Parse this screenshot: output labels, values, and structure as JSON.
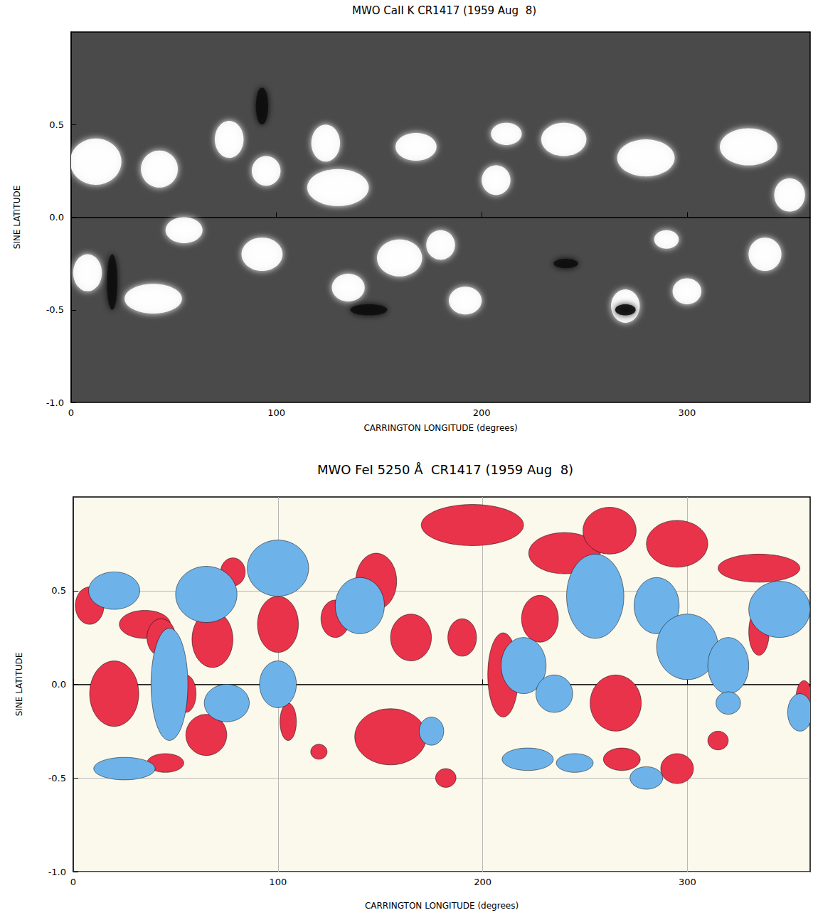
{
  "chart_data": [
    {
      "type": "blob_map",
      "title": "MWO CaII K CR1417 (1959 Aug  8)",
      "x_label": "CARRINGTON LONGITUDE (degrees)",
      "y_label": "SINE LATITUDE",
      "xlim": [
        0,
        360
      ],
      "xticks": [
        0,
        100,
        200,
        300
      ],
      "ylim": [
        -1,
        1
      ],
      "yticks": [
        {
          "value": -1,
          "label": "-1.0"
        },
        {
          "value": -0.5,
          "label": "-0.5"
        },
        {
          "value": 0,
          "label": "0.0"
        },
        {
          "value": 0.5,
          "label": "0.5"
        }
      ],
      "grid": false,
      "series": [
        {
          "color": "#ffffff",
          "values": [
            [
              12,
              0.3,
              25,
              0.25
            ],
            [
              43,
              0.26,
              18,
              0.2
            ],
            [
              77,
              0.42,
              14,
              0.2
            ],
            [
              95,
              0.25,
              14,
              0.16
            ],
            [
              124,
              0.4,
              14,
              0.2
            ],
            [
              130,
              0.16,
              30,
              0.2
            ],
            [
              168,
              0.38,
              20,
              0.15
            ],
            [
              207,
              0.2,
              14,
              0.16
            ],
            [
              212,
              0.45,
              15,
              0.12
            ],
            [
              240,
              0.42,
              22,
              0.18
            ],
            [
              280,
              0.32,
              28,
              0.2
            ],
            [
              330,
              0.38,
              28,
              0.2
            ],
            [
              350,
              0.12,
              15,
              0.18
            ],
            [
              55,
              -0.07,
              18,
              0.14
            ],
            [
              93,
              -0.2,
              20,
              0.18
            ],
            [
              8,
              -0.3,
              14,
              0.2
            ],
            [
              40,
              -0.44,
              28,
              0.16
            ],
            [
              160,
              -0.22,
              22,
              0.2
            ],
            [
              135,
              -0.38,
              16,
              0.15
            ],
            [
              192,
              -0.45,
              16,
              0.15
            ],
            [
              180,
              -0.15,
              14,
              0.16
            ],
            [
              290,
              -0.12,
              12,
              0.1
            ],
            [
              270,
              -0.48,
              14,
              0.18
            ],
            [
              300,
              -0.4,
              14,
              0.14
            ],
            [
              338,
              -0.2,
              16,
              0.18
            ]
          ]
        },
        {
          "color": "#111111",
          "values": [
            [
              93,
              0.6,
              6,
              0.2
            ],
            [
              20,
              -0.35,
              5,
              0.3
            ],
            [
              145,
              -0.5,
              18,
              0.06
            ],
            [
              270,
              -0.5,
              10,
              0.06
            ],
            [
              241,
              -0.25,
              12,
              0.05
            ]
          ]
        }
      ]
    },
    {
      "type": "blob_map",
      "title": "MWO FeI 5250 Å  CR1417 (1959 Aug  8)",
      "x_label": "CARRINGTON LONGITUDE (degrees)",
      "y_label": "SINE LATITUDE",
      "xlim": [
        0,
        360
      ],
      "xticks": [
        0,
        100,
        200,
        300
      ],
      "ylim": [
        -1,
        1
      ],
      "yticks": [
        {
          "value": -1,
          "label": "-1.0"
        },
        {
          "value": -0.5,
          "label": "-0.5"
        },
        {
          "value": 0,
          "label": "0.0"
        },
        {
          "value": 0.5,
          "label": "0.5"
        }
      ],
      "grid": true,
      "series": [
        {
          "color": "#e8334a",
          "values": [
            [
              8,
              0.42,
              14,
              0.2
            ],
            [
              20,
              -0.05,
              24,
              0.35
            ],
            [
              35,
              0.32,
              25,
              0.15
            ],
            [
              43,
              0.25,
              14,
              0.2
            ],
            [
              68,
              0.24,
              20,
              0.3
            ],
            [
              55,
              -0.05,
              10,
              0.2
            ],
            [
              65,
              -0.27,
              20,
              0.22
            ],
            [
              45,
              -0.42,
              18,
              0.1
            ],
            [
              78,
              0.6,
              12,
              0.15
            ],
            [
              100,
              0.32,
              20,
              0.3
            ],
            [
              105,
              -0.2,
              8,
              0.2
            ],
            [
              128,
              0.35,
              14,
              0.2
            ],
            [
              148,
              0.55,
              20,
              0.3
            ],
            [
              155,
              -0.28,
              35,
              0.3
            ],
            [
              165,
              0.25,
              20,
              0.25
            ],
            [
              195,
              0.85,
              50,
              0.22
            ],
            [
              240,
              0.7,
              35,
              0.22
            ],
            [
              210,
              0.05,
              15,
              0.45
            ],
            [
              190,
              0.25,
              14,
              0.2
            ],
            [
              262,
              0.82,
              26,
              0.25
            ],
            [
              295,
              0.75,
              30,
              0.25
            ],
            [
              335,
              0.62,
              40,
              0.15
            ],
            [
              228,
              0.35,
              18,
              0.25
            ],
            [
              265,
              -0.1,
              25,
              0.3
            ],
            [
              268,
              -0.4,
              18,
              0.12
            ],
            [
              295,
              -0.45,
              16,
              0.16
            ],
            [
              315,
              -0.3,
              10,
              0.1
            ],
            [
              335,
              0.28,
              10,
              0.25
            ],
            [
              357,
              -0.08,
              8,
              0.2
            ],
            [
              182,
              -0.5,
              10,
              0.1
            ],
            [
              120,
              -0.36,
              8,
              0.08
            ]
          ]
        },
        {
          "color": "#6db3ea",
          "values": [
            [
              20,
              0.5,
              25,
              0.2
            ],
            [
              47,
              0,
              18,
              0.6
            ],
            [
              25,
              -0.45,
              30,
              0.12
            ],
            [
              65,
              0.48,
              30,
              0.3
            ],
            [
              75,
              -0.1,
              22,
              0.2
            ],
            [
              100,
              0.62,
              30,
              0.3
            ],
            [
              100,
              0,
              18,
              0.25
            ],
            [
              140,
              0.42,
              24,
              0.3
            ],
            [
              175,
              -0.25,
              12,
              0.15
            ],
            [
              220,
              0.1,
              22,
              0.3
            ],
            [
              235,
              -0.05,
              18,
              0.2
            ],
            [
              222,
              -0.4,
              25,
              0.12
            ],
            [
              255,
              0.47,
              28,
              0.45
            ],
            [
              285,
              0.42,
              22,
              0.3
            ],
            [
              300,
              0.2,
              30,
              0.35
            ],
            [
              320,
              0.1,
              20,
              0.3
            ],
            [
              345,
              0.4,
              30,
              0.3
            ],
            [
              355,
              -0.15,
              12,
              0.2
            ],
            [
              280,
              -0.5,
              16,
              0.12
            ],
            [
              245,
              -0.42,
              18,
              0.1
            ],
            [
              320,
              -0.1,
              12,
              0.12
            ]
          ]
        }
      ]
    }
  ]
}
